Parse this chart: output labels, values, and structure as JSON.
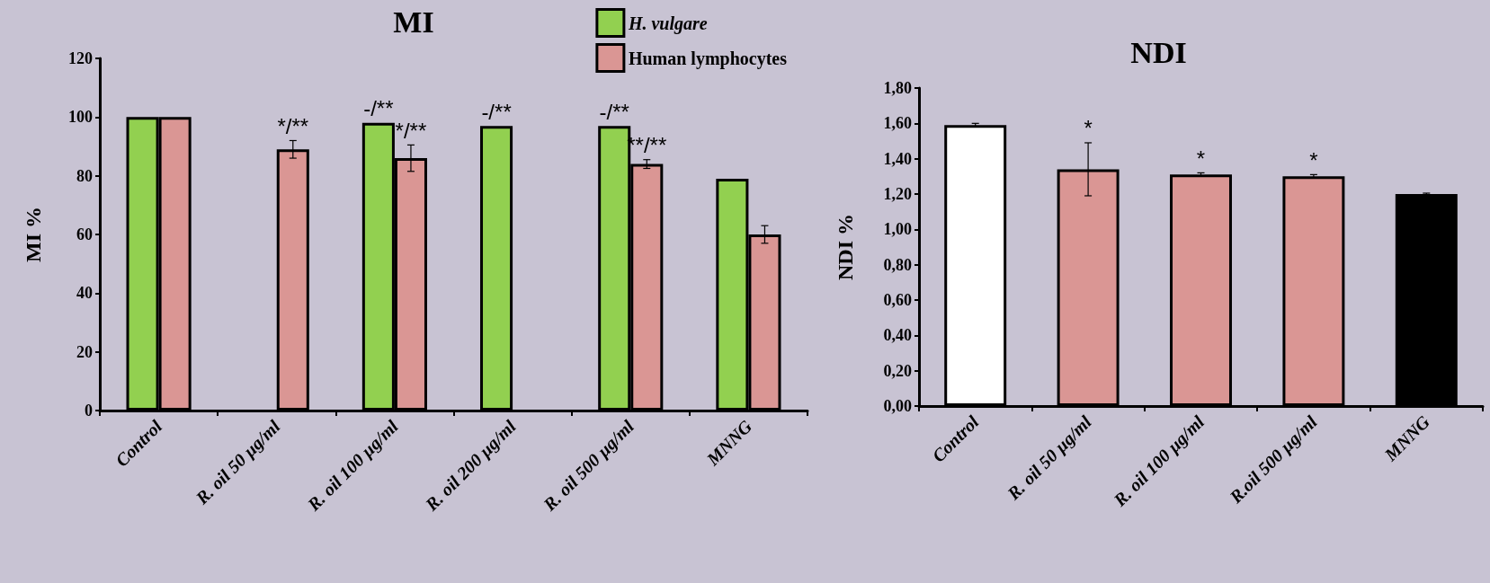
{
  "chart_data": [
    {
      "type": "bar",
      "title": "MI",
      "ylabel": "MI %",
      "categories": [
        "Control",
        "R. oil 50 µg/ml",
        "R. oil 100 µg/ml",
        "R. oil 200 µg/ml",
        "R. oil 500 µg/ml",
        "MNNG"
      ],
      "series": [
        {
          "name": "H. vulgare",
          "color": "#92d050",
          "values": [
            100,
            null,
            98,
            97,
            97,
            79
          ]
        },
        {
          "name": "Human lymphocytes",
          "color": "#da9694",
          "values": [
            100,
            89,
            86,
            null,
            84,
            60
          ],
          "errors": [
            null,
            3,
            4.5,
            null,
            1.5,
            3
          ]
        }
      ],
      "ylim": [
        0,
        120
      ],
      "yticks": [
        0,
        20,
        40,
        60,
        80,
        100,
        120
      ],
      "grid": false,
      "legend": "top right",
      "annotations": [
        {
          "text": "*/**",
          "x": "R. oil 50 µg/ml",
          "y": 89
        },
        {
          "text": "-/**",
          "x": "R. oil 100 µg/ml",
          "y": 98
        },
        {
          "text": "*/**",
          "x": "R. oil 100 µg/ml",
          "y": 86
        },
        {
          "text": "-/**",
          "x": "R. oil 200 µg/ml",
          "y": 97
        },
        {
          "text": "-/**",
          "x": "R. oil 500 µg/ml",
          "y": 97
        },
        {
          "text": "**/**",
          "x": "R. oil 500 µg/ml",
          "y": 84
        }
      ]
    },
    {
      "type": "bar",
      "title": "NDI",
      "ylabel": "NDI %",
      "categories": [
        "Control",
        "R. oil 50 µg/ml",
        "R. oil 100 µg/ml",
        "R.oil 500 µg/ml",
        "MNNG"
      ],
      "values": [
        1.59,
        1.34,
        1.31,
        1.3,
        1.2
      ],
      "errors": [
        0.01,
        0.15,
        0.01,
        0.01,
        0.005
      ],
      "colors": [
        "#ffffff",
        "#da9694",
        "#da9694",
        "#da9694",
        "#000000"
      ],
      "ylim": [
        0,
        1.8
      ],
      "yticks": [
        {
          "value": 0,
          "label": "0,00"
        },
        {
          "value": 0.2,
          "label": "0,20"
        },
        {
          "value": 0.4,
          "label": "0,40"
        },
        {
          "value": 0.6,
          "label": "0,60"
        },
        {
          "value": 0.8,
          "label": "0,80"
        },
        {
          "value": 1,
          "label": "1,00"
        },
        {
          "value": 1.2,
          "label": "1,20"
        },
        {
          "value": 1.4,
          "label": "1,40"
        },
        {
          "value": 1.6,
          "label": "1,60"
        },
        {
          "value": 1.8,
          "label": "1,80"
        }
      ],
      "grid": false,
      "legend": false,
      "annotations": [
        {
          "text": "*",
          "x": "R. oil 50 µg/ml",
          "y": 1.34
        },
        {
          "text": "*",
          "x": "R. oil 100 µg/ml",
          "y": 1.31
        },
        {
          "text": "*",
          "x": "R.oil 500 µg/ml",
          "y": 1.3
        }
      ]
    }
  ]
}
